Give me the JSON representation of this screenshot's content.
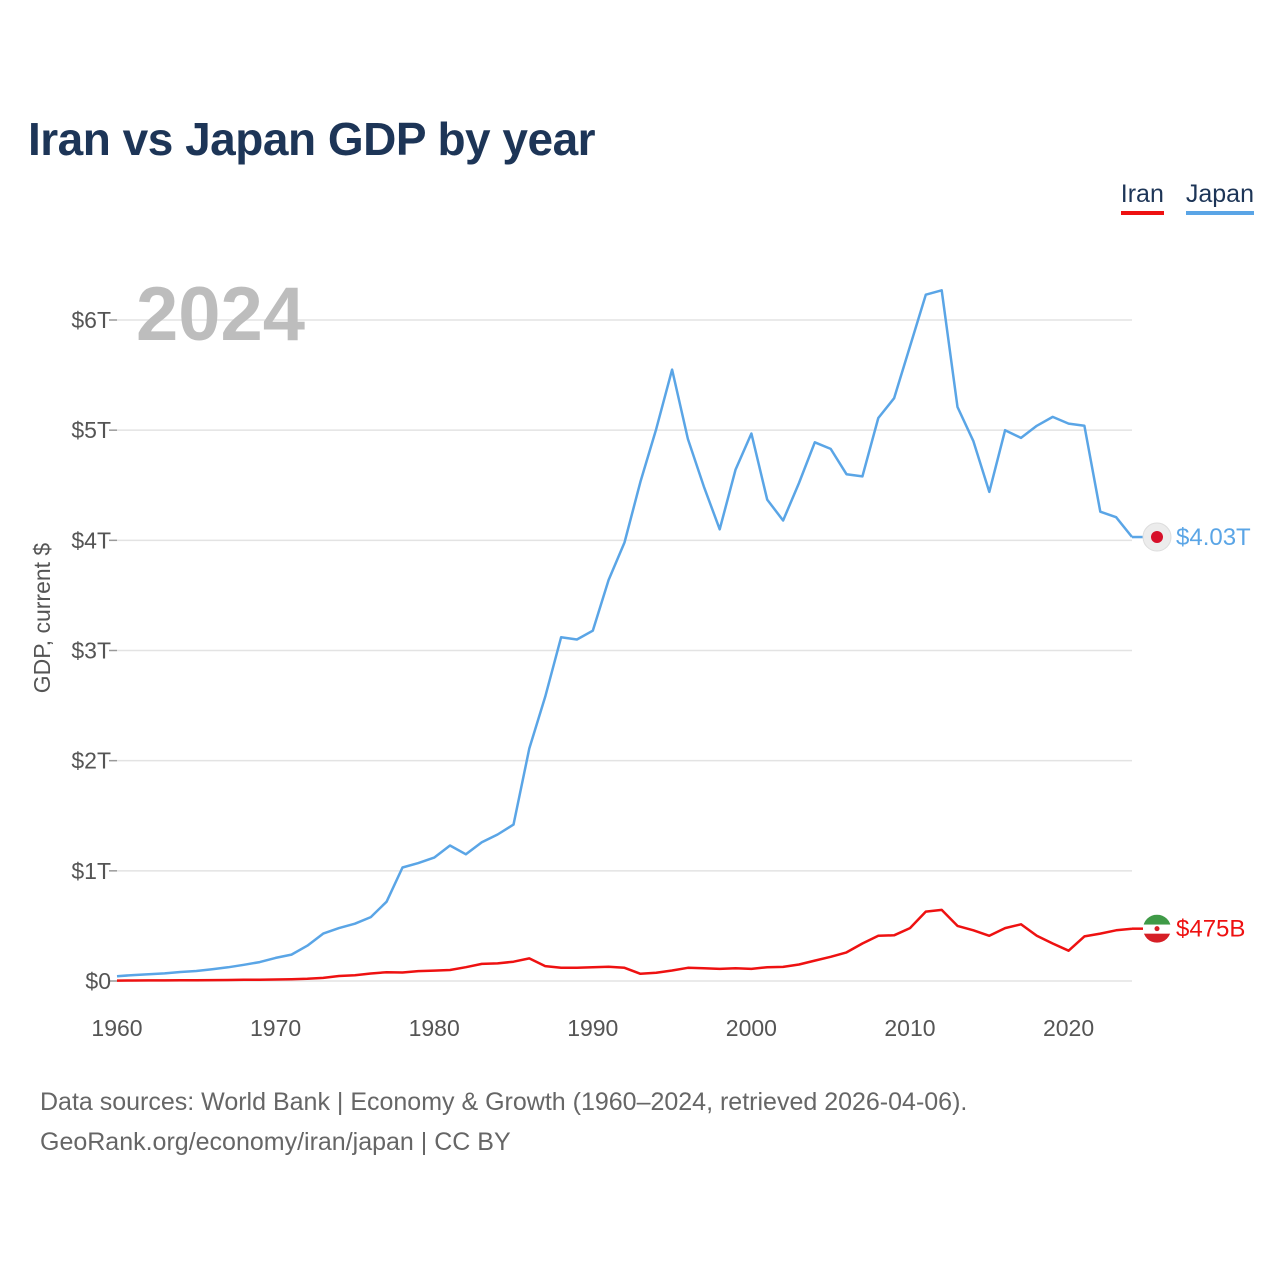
{
  "title": "Iran vs Japan GDP by year",
  "legend": [
    {
      "name": "Iran",
      "color": "#ee1111"
    },
    {
      "name": "Japan",
      "color": "#5aa5e6"
    }
  ],
  "footer": {
    "line1": "Data sources: World Bank | Economy & Growth (1960–2024, retrieved 2026-04-06).",
    "line2": "GeoRank.org/economy/iran/japan | CC BY"
  },
  "chart_data": {
    "type": "line",
    "title": "Iran vs Japan GDP by year",
    "xlabel": "",
    "ylabel": "GDP, current $",
    "current_year": "2024",
    "xlim": [
      1960,
      2024
    ],
    "ylim": [
      0,
      6.0
    ],
    "x_ticks": [
      1960,
      1970,
      1980,
      1990,
      2000,
      2010,
      2020
    ],
    "y_ticks": [
      {
        "value": 0,
        "label": "$0"
      },
      {
        "value": 1,
        "label": "$1T"
      },
      {
        "value": 2,
        "label": "$2T"
      },
      {
        "value": 3,
        "label": "$3T"
      },
      {
        "value": 4,
        "label": "$4T"
      },
      {
        "value": 5,
        "label": "$5T"
      },
      {
        "value": 6,
        "label": "$6T"
      }
    ],
    "years": [
      1960,
      1961,
      1962,
      1963,
      1964,
      1965,
      1966,
      1967,
      1968,
      1969,
      1970,
      1971,
      1972,
      1973,
      1974,
      1975,
      1976,
      1977,
      1978,
      1979,
      1980,
      1981,
      1982,
      1983,
      1984,
      1985,
      1986,
      1987,
      1988,
      1989,
      1990,
      1991,
      1992,
      1993,
      1994,
      1995,
      1996,
      1997,
      1998,
      1999,
      2000,
      2001,
      2002,
      2003,
      2004,
      2005,
      2006,
      2007,
      2008,
      2009,
      2010,
      2011,
      2012,
      2013,
      2014,
      2015,
      2016,
      2017,
      2018,
      2019,
      2020,
      2021,
      2022,
      2023,
      2024
    ],
    "series": [
      {
        "name": "Japan",
        "color": "#5aa5e6",
        "end_label": "$4.03T",
        "values": [
          0.044,
          0.054,
          0.061,
          0.069,
          0.082,
          0.091,
          0.106,
          0.124,
          0.147,
          0.172,
          0.21,
          0.24,
          0.32,
          0.43,
          0.48,
          0.52,
          0.58,
          0.72,
          1.03,
          1.07,
          1.12,
          1.23,
          1.15,
          1.26,
          1.33,
          1.42,
          2.11,
          2.58,
          3.12,
          3.1,
          3.18,
          3.64,
          3.98,
          4.53,
          5.01,
          5.55,
          4.92,
          4.49,
          4.1,
          4.64,
          4.97,
          4.37,
          4.18,
          4.52,
          4.89,
          4.83,
          4.6,
          4.58,
          5.11,
          5.29,
          5.76,
          6.23,
          6.27,
          5.21,
          4.9,
          4.44,
          5.0,
          4.93,
          5.04,
          5.12,
          5.06,
          5.04,
          4.26,
          4.21,
          4.03
        ]
      },
      {
        "name": "Iran",
        "color": "#ee1111",
        "end_label": "$475B",
        "values": [
          0.004,
          0.0045,
          0.005,
          0.0055,
          0.0065,
          0.0072,
          0.008,
          0.0092,
          0.0105,
          0.012,
          0.0135,
          0.016,
          0.02,
          0.028,
          0.045,
          0.052,
          0.068,
          0.08,
          0.077,
          0.09,
          0.094,
          0.1,
          0.125,
          0.155,
          0.16,
          0.175,
          0.205,
          0.135,
          0.12,
          0.12,
          0.125,
          0.13,
          0.12,
          0.065,
          0.075,
          0.095,
          0.12,
          0.115,
          0.11,
          0.115,
          0.11,
          0.125,
          0.128,
          0.15,
          0.185,
          0.22,
          0.26,
          0.34,
          0.41,
          0.415,
          0.48,
          0.63,
          0.645,
          0.5,
          0.46,
          0.41,
          0.48,
          0.515,
          0.41,
          0.34,
          0.275,
          0.405,
          0.43,
          0.46,
          0.475
        ]
      }
    ]
  }
}
